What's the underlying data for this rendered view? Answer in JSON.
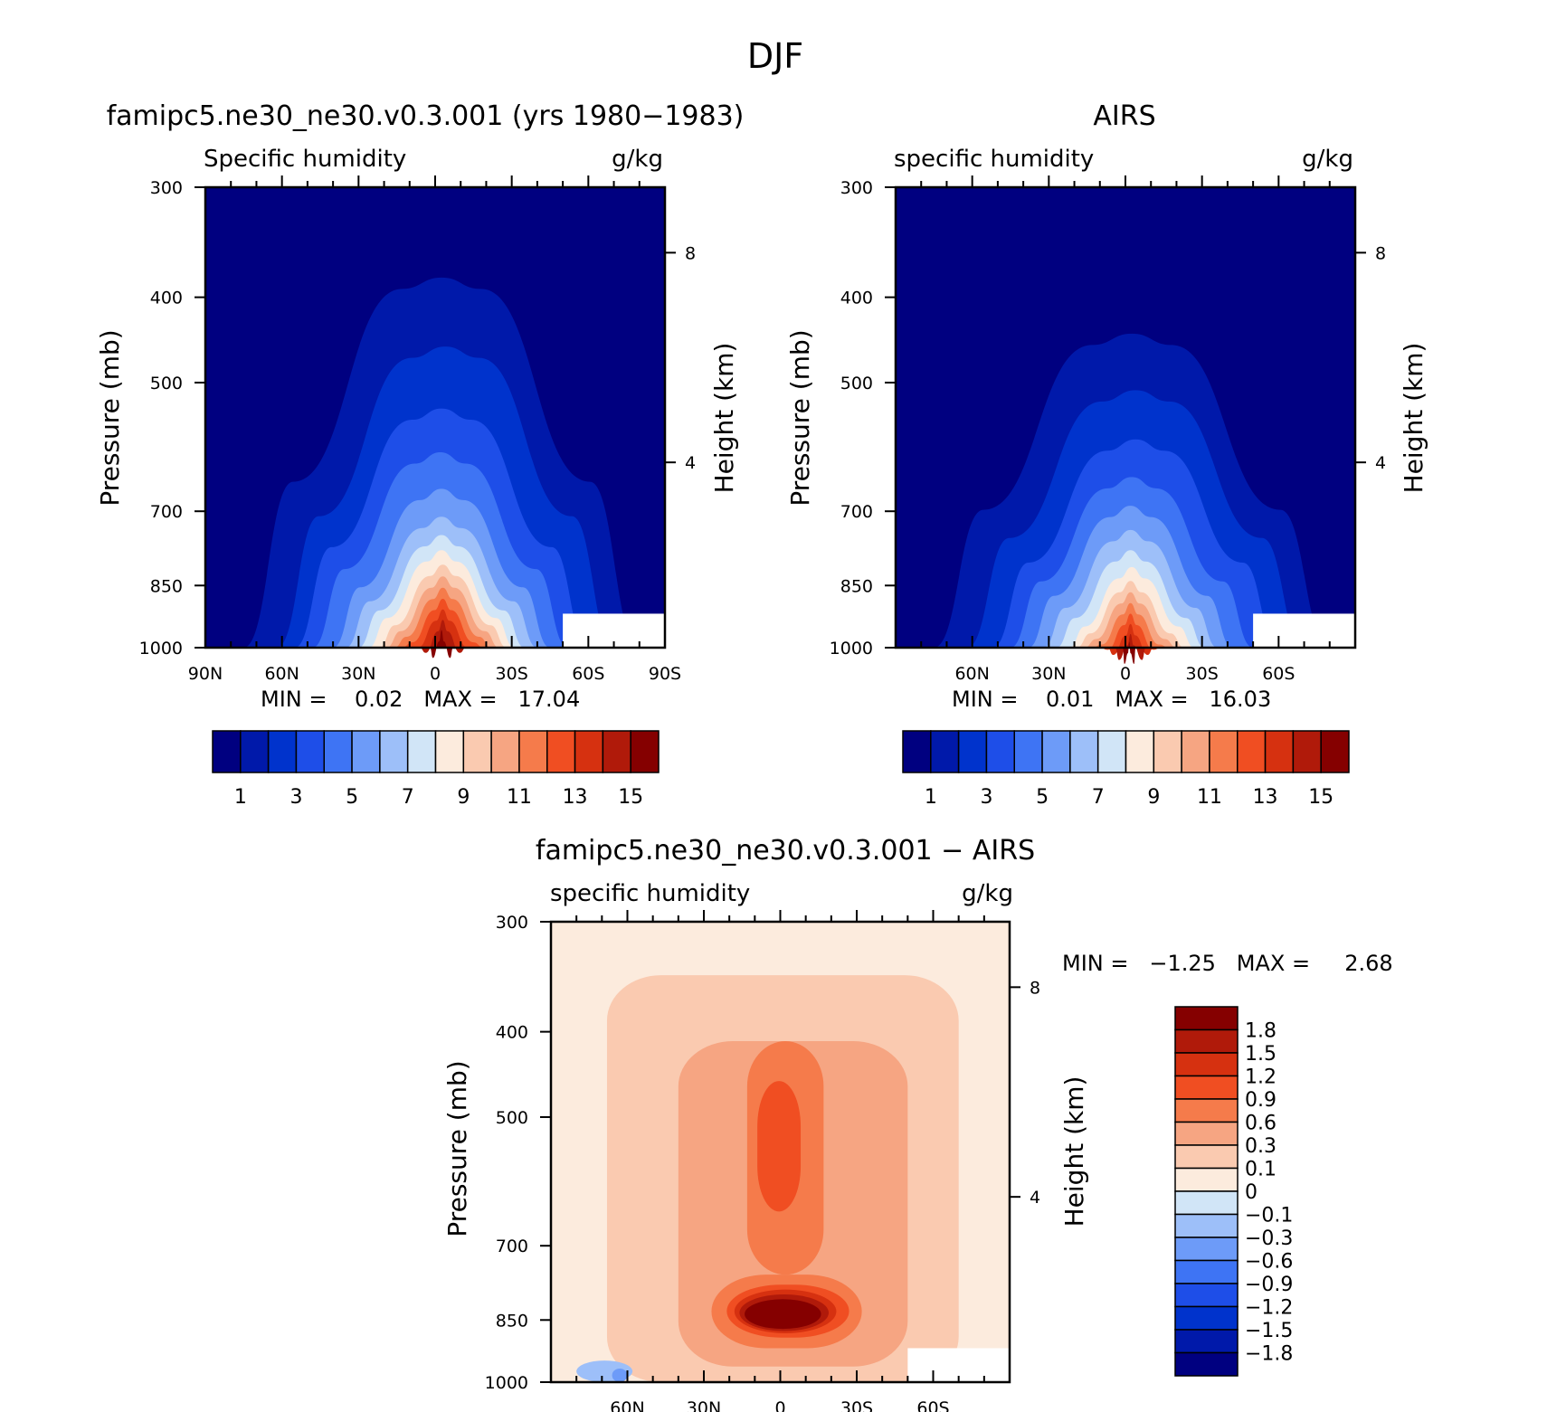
{
  "figure": {
    "title": "DJF"
  },
  "palettes": {
    "abs16": [
      "#000080",
      "#0019AA",
      "#0033CC",
      "#1E4EE8",
      "#3E74F4",
      "#6D9BF8",
      "#9DBFF9",
      "#D1E5F7",
      "#FCEBDD",
      "#FACAB0",
      "#F6A582",
      "#F57B4B",
      "#F04E22",
      "#D63110",
      "#B01A0A",
      "#850000"
    ],
    "diff16": [
      "#000080",
      "#0019AA",
      "#0033CC",
      "#1E4EE8",
      "#3E74F4",
      "#6D9BF8",
      "#9DBFF9",
      "#D1E5F7",
      "#FCEBDD",
      "#FACAB0",
      "#F6A582",
      "#F57B4B",
      "#F04E22",
      "#D63110",
      "#B01A0A",
      "#850000"
    ]
  },
  "panels": {
    "model": {
      "title": "famipc5.ne30_ne30.v0.3.001 (yrs 1980−1983)",
      "left_label": "Specific humidity",
      "right_label": "g/kg",
      "ylabel": "Pressure (mb)",
      "ylabel2": "Height (km)",
      "stats": "MIN =    0.02   MAX =   17.04",
      "x_ticks": [
        "90N",
        "60N",
        "30N",
        "0",
        "30S",
        "60S",
        "90S"
      ],
      "y_ticks": [
        "300",
        "400",
        "500",
        "700",
        "850",
        "1000"
      ],
      "y2_ticks": [
        "8",
        "4"
      ],
      "colorbar_labels": [
        "1",
        "3",
        "5",
        "7",
        "9",
        "11",
        "13",
        "15"
      ]
    },
    "obs": {
      "title": "AIRS",
      "left_label": "specific humidity",
      "right_label": "g/kg",
      "ylabel": "Pressure (mb)",
      "ylabel2": "Height (km)",
      "stats": "MIN =    0.01   MAX =   16.03",
      "x_ticks": [
        "60N",
        "30N",
        "0",
        "30S",
        "60S"
      ],
      "y_ticks": [
        "300",
        "400",
        "500",
        "700",
        "850",
        "1000"
      ],
      "y2_ticks": [
        "8",
        "4"
      ],
      "colorbar_labels": [
        "1",
        "3",
        "5",
        "7",
        "9",
        "11",
        "13",
        "15"
      ]
    },
    "diff": {
      "title": "famipc5.ne30_ne30.v0.3.001 − AIRS",
      "left_label": "specific humidity",
      "right_label": "g/kg",
      "ylabel": "Pressure (mb)",
      "ylabel2": "Height (km)",
      "stats": "MIN =   −1.25   MAX =     2.68",
      "x_ticks": [
        "60N",
        "30N",
        "0",
        "30S",
        "60S"
      ],
      "y_ticks": [
        "300",
        "400",
        "500",
        "700",
        "850",
        "1000"
      ],
      "y2_ticks": [
        "8",
        "4"
      ],
      "colorbar_labels": [
        "1.8",
        "1.5",
        "1.2",
        "0.9",
        "0.6",
        "0.3",
        "0.1",
        "0",
        "−0.1",
        "−0.3",
        "−0.6",
        "−0.9",
        "−1.2",
        "−1.5",
        "−1.8"
      ]
    }
  },
  "chart_data": [
    {
      "type": "heatmap",
      "name": "model",
      "title": "famipc5.ne30_ne30.v0.3.001 (yrs 1980−1983)",
      "xlabel": "",
      "ylabel": "Pressure (mb)",
      "xlim": [
        90,
        -90
      ],
      "ylim": [
        1000,
        300
      ],
      "y_scale": "log",
      "y2label": "Height (km)",
      "units": "g/kg",
      "min": 0.02,
      "max": 17.04,
      "levels": [
        1,
        2,
        3,
        4,
        5,
        6,
        7,
        8,
        9,
        10,
        11,
        12,
        13,
        14,
        15
      ],
      "peak": {
        "lat": -3,
        "plev": 1000,
        "value": 17.04
      },
      "contours": [
        {
          "level": 1,
          "plev_top": 380,
          "lat_north": 75,
          "lat_south": -80
        },
        {
          "level": 2,
          "plev_top": 455,
          "lat_north": 62,
          "lat_south": -70
        },
        {
          "level": 3,
          "plev_top": 535,
          "lat_north": 55,
          "lat_south": -60
        },
        {
          "level": 4,
          "plev_top": 600,
          "lat_north": 48,
          "lat_south": -52
        },
        {
          "level": 5,
          "plev_top": 660,
          "lat_north": 40,
          "lat_south": -45
        },
        {
          "level": 6,
          "plev_top": 710,
          "lat_north": 35,
          "lat_south": -40
        },
        {
          "level": 7,
          "plev_top": 745,
          "lat_north": 30,
          "lat_south": -35
        },
        {
          "level": 8,
          "plev_top": 775,
          "lat_north": 26,
          "lat_south": -31
        },
        {
          "level": 9,
          "plev_top": 805,
          "lat_north": 22,
          "lat_south": -28
        },
        {
          "level": 10,
          "plev_top": 830,
          "lat_north": 19,
          "lat_south": -25
        },
        {
          "level": 11,
          "plev_top": 855,
          "lat_north": 16,
          "lat_south": -22
        },
        {
          "level": 12,
          "plev_top": 880,
          "lat_north": 13,
          "lat_south": -19
        },
        {
          "level": 13,
          "plev_top": 905,
          "lat_north": 10,
          "lat_south": -16
        },
        {
          "level": 14,
          "plev_top": 930,
          "lat_north": 6,
          "lat_south": -12
        },
        {
          "level": 15,
          "plev_top": 955,
          "lat_north": 2,
          "lat_south": -7
        }
      ]
    },
    {
      "type": "heatmap",
      "name": "obs",
      "title": "AIRS",
      "xlabel": "",
      "ylabel": "Pressure (mb)",
      "xlim": [
        90,
        -90
      ],
      "ylim": [
        1000,
        300
      ],
      "y_scale": "log",
      "y2label": "Height (km)",
      "units": "g/kg",
      "min": 0.01,
      "max": 16.03,
      "levels": [
        1,
        2,
        3,
        4,
        5,
        6,
        7,
        8,
        9,
        10,
        11,
        12,
        13,
        14,
        15
      ],
      "peak": {
        "lat": 0,
        "plev": 1000,
        "value": 16.03
      },
      "contours": [
        {
          "level": 1,
          "plev_top": 440,
          "lat_north": 75,
          "lat_south": -80
        },
        {
          "level": 2,
          "plev_top": 510,
          "lat_north": 62,
          "lat_south": -70
        },
        {
          "level": 3,
          "plev_top": 580,
          "lat_north": 52,
          "lat_south": -60
        },
        {
          "level": 4,
          "plev_top": 640,
          "lat_north": 45,
          "lat_south": -50
        },
        {
          "level": 5,
          "plev_top": 690,
          "lat_north": 38,
          "lat_south": -42
        },
        {
          "level": 6,
          "plev_top": 735,
          "lat_north": 32,
          "lat_south": -36
        },
        {
          "level": 7,
          "plev_top": 775,
          "lat_north": 27,
          "lat_south": -31
        },
        {
          "level": 8,
          "plev_top": 810,
          "lat_north": 22,
          "lat_south": -27
        },
        {
          "level": 9,
          "plev_top": 840,
          "lat_north": 19,
          "lat_south": -23
        },
        {
          "level": 10,
          "plev_top": 865,
          "lat_north": 16,
          "lat_south": -20
        },
        {
          "level": 11,
          "plev_top": 890,
          "lat_north": 13,
          "lat_south": -17
        },
        {
          "level": 12,
          "plev_top": 915,
          "lat_north": 10,
          "lat_south": -14
        },
        {
          "level": 13,
          "plev_top": 940,
          "lat_north": 7,
          "lat_south": -11
        },
        {
          "level": 14,
          "plev_top": 965,
          "lat_north": 4,
          "lat_south": -8
        },
        {
          "level": 15,
          "plev_top": 985,
          "lat_north": 1,
          "lat_south": -4
        }
      ]
    },
    {
      "type": "heatmap",
      "name": "diff",
      "title": "famipc5.ne30_ne30.v0.3.001 − AIRS",
      "xlabel": "",
      "ylabel": "Pressure (mb)",
      "xlim": [
        90,
        -90
      ],
      "ylim": [
        1000,
        300
      ],
      "y_scale": "log",
      "y2label": "Height (km)",
      "units": "g/kg",
      "min": -1.25,
      "max": 2.68,
      "levels": [
        -1.8,
        -1.5,
        -1.2,
        -0.9,
        -0.6,
        -0.3,
        -0.1,
        0,
        0.1,
        0.3,
        0.6,
        0.9,
        1.2,
        1.5,
        1.8
      ],
      "background_value": 0.05,
      "regions": [
        {
          "value": 0.2,
          "lat_range": [
            68,
            -70
          ],
          "plev_range": [
            345,
            1000
          ]
        },
        {
          "value": 0.45,
          "lat_range": [
            40,
            -50
          ],
          "plev_range": [
            410,
            960
          ]
        },
        {
          "value": 0.75,
          "lat_range": [
            27,
            -32
          ],
          "plev_range": [
            755,
            915
          ]
        },
        {
          "value": 0.75,
          "lat_range": [
            13,
            -17
          ],
          "plev_range": [
            410,
            755
          ]
        },
        {
          "value": 1.05,
          "lat_range": [
            9,
            -8
          ],
          "plev_range": [
            455,
            640
          ]
        },
        {
          "value": 1.05,
          "lat_range": [
            21,
            -27
          ],
          "plev_range": [
            775,
            890
          ]
        },
        {
          "value": 1.35,
          "lat_range": [
            18,
            -22
          ],
          "plev_range": [
            785,
            880
          ]
        },
        {
          "value": 1.65,
          "lat_range": [
            16,
            -19
          ],
          "plev_range": [
            795,
            875
          ]
        },
        {
          "value": 2.2,
          "lat_range": [
            14,
            -16
          ],
          "plev_range": [
            805,
            870
          ]
        },
        {
          "value": -0.2,
          "lat_range": [
            80,
            58
          ],
          "plev_range": [
            945,
            1000
          ]
        },
        {
          "value": -0.5,
          "lat_range": [
            66,
            60
          ],
          "plev_range": [
            965,
            1000
          ]
        }
      ]
    }
  ]
}
